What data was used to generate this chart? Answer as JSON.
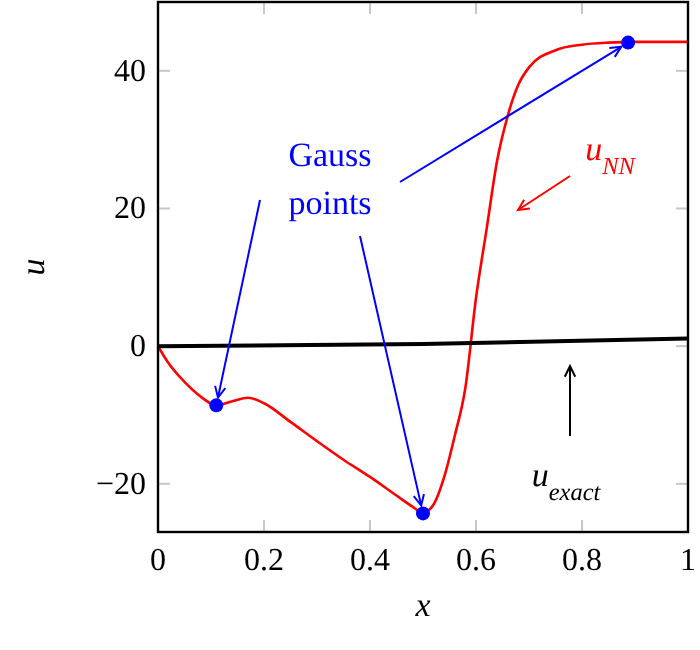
{
  "chart_data": {
    "type": "line",
    "xlabel": "x",
    "ylabel": "u",
    "xlim": [
      0,
      1
    ],
    "ylim": [
      -27,
      50
    ],
    "xticks": [
      0,
      0.2,
      0.4,
      0.6,
      0.8,
      1
    ],
    "yticks": [
      -20,
      0,
      20,
      40
    ],
    "grid": false,
    "annotations": [
      {
        "text": "Gauss points",
        "x": 0.11,
        "y": -8.6
      }
    ],
    "series": [
      {
        "name": "u$_{NN}$",
        "color": "#ff0000",
        "x": [
          0,
          0.02,
          0.05,
          0.08,
          0.11,
          0.14,
          0.17,
          0.2,
          0.25,
          0.3,
          0.35,
          0.4,
          0.45,
          0.48,
          0.5,
          0.52,
          0.54,
          0.56,
          0.58,
          0.6,
          0.62,
          0.64,
          0.66,
          0.68,
          0.7,
          0.75,
          0.8,
          0.85,
          0.9,
          0.95,
          1
        ],
        "values": [
          0,
          -2.5,
          -5.2,
          -7.3,
          -8.6,
          -8,
          -7.5,
          -8.3,
          -11,
          -13.8,
          -16.5,
          -19,
          -21.7,
          -23.3,
          -24.2,
          -23,
          -19,
          -13,
          -6,
          7,
          17,
          27,
          33.5,
          38,
          40.5,
          43,
          43.8,
          44.1,
          44.2,
          44.2,
          44.2
        ]
      },
      {
        "name": "u$_{exact}$",
        "color": "#000000",
        "x": [
          0,
          0.5,
          1
        ],
        "values": [
          0,
          0.3,
          1.1
        ]
      },
      {
        "type": "scatter",
        "color": "#0000ff",
        "marker": "circle",
        "x": [
          0.11,
          0.5,
          0.887
        ],
        "values": [
          -8.6,
          -24.3,
          44.1
        ]
      }
    ]
  }
}
